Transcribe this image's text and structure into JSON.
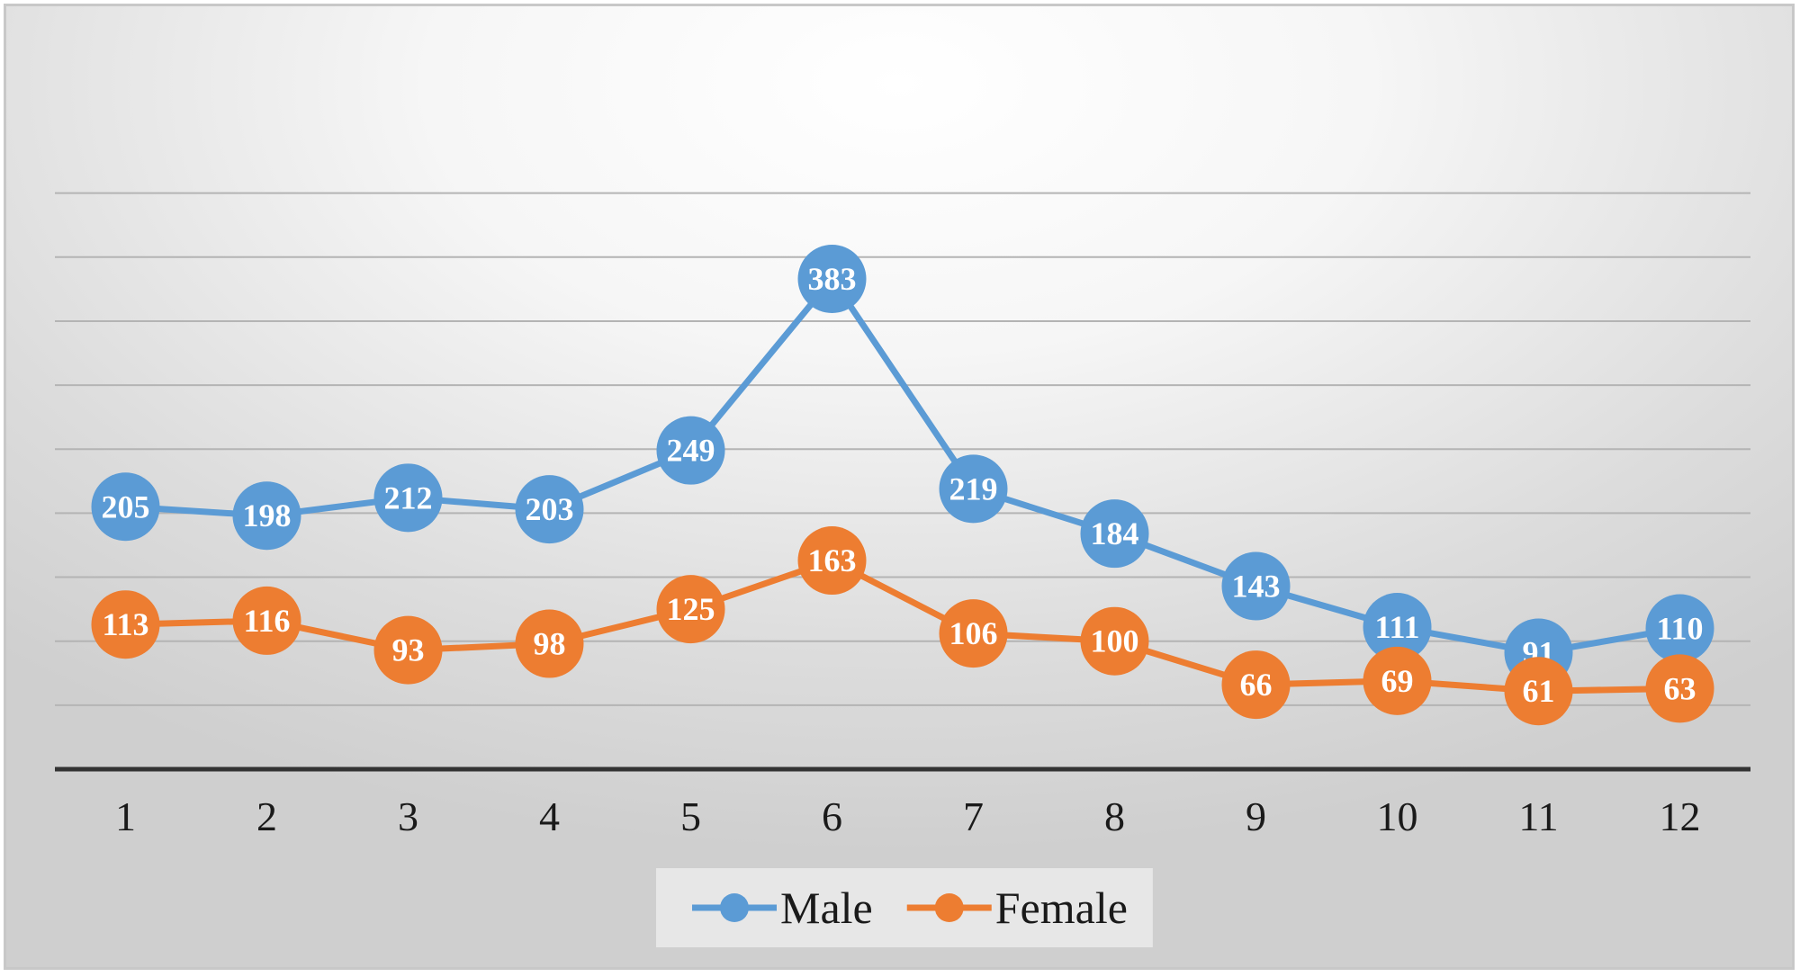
{
  "chart_data": {
    "type": "line",
    "categories": [
      "1",
      "2",
      "3",
      "4",
      "5",
      "6",
      "7",
      "8",
      "9",
      "10",
      "11",
      "12"
    ],
    "series": [
      {
        "name": "Male",
        "color": "#5b9bd5",
        "values": [
          205,
          198,
          212,
          203,
          249,
          383,
          219,
          184,
          143,
          111,
          91,
          110
        ]
      },
      {
        "name": "Female",
        "color": "#ed7d31",
        "values": [
          113,
          116,
          93,
          98,
          125,
          163,
          106,
          100,
          66,
          69,
          61,
          63
        ]
      }
    ],
    "ylim": [
      0,
      450
    ],
    "y_gridline_step": 50,
    "y_tick_labels_shown": false,
    "data_labels": true,
    "grid": true,
    "legend_position": "bottom-center"
  }
}
